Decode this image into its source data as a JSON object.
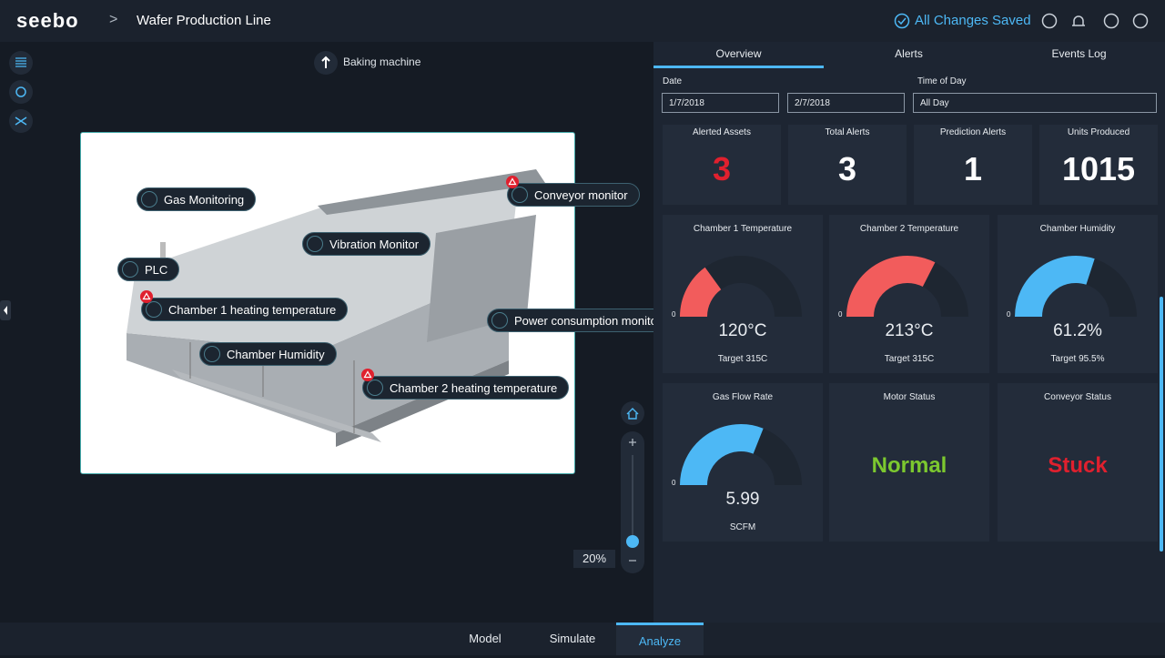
{
  "header": {
    "logo": "seebo",
    "breadcrumb": "Wafer Production Line",
    "status": "All Changes Saved"
  },
  "view": {
    "title": "Baking machine",
    "hotspots": [
      {
        "label": "Gas Monitoring",
        "alert": false
      },
      {
        "label": "Conveyor monitor",
        "alert": true
      },
      {
        "label": "Vibration Monitor",
        "alert": false
      },
      {
        "label": "PLC",
        "alert": false
      },
      {
        "label": "Chamber 1 heating temperature",
        "alert": true
      },
      {
        "label": "Power consumption monitor",
        "alert": false
      },
      {
        "label": "Chamber Humidity",
        "alert": false
      },
      {
        "label": "Chamber 2 heating temperature",
        "alert": true
      }
    ],
    "zoom": "20%"
  },
  "tabs": [
    {
      "label": "Overview",
      "active": true
    },
    {
      "label": "Alerts",
      "active": false
    },
    {
      "label": "Events Log",
      "active": false
    }
  ],
  "filters": {
    "date_label": "Date",
    "date_from": "1/7/2018",
    "date_to": "2/7/2018",
    "time_label": "Time of Day",
    "time_value": "All Day"
  },
  "kpis": [
    {
      "label": "Alerted Assets",
      "value": 3,
      "alert": true
    },
    {
      "label": "Total Alerts",
      "value": 3,
      "alert": false
    },
    {
      "label": "Prediction Alerts",
      "value": 1,
      "alert": false
    },
    {
      "label": "Units Produced",
      "value": 1015,
      "alert": false
    }
  ],
  "gauges": [
    {
      "title": "Chamber 1 Temperature",
      "min": 0,
      "value": "120°C",
      "caption": "Target 315C",
      "color": "#f25c5c"
    },
    {
      "title": "Chamber 2 Temperature",
      "min": 0,
      "value": "213°C",
      "caption": "Target 315C",
      "color": "#f25c5c"
    },
    {
      "title": "Chamber Humidity",
      "min": 0,
      "value": "61.2%",
      "caption": "Target 95.5%",
      "color": "#4db8f5"
    },
    {
      "title": "Gas Flow Rate",
      "min": 0,
      "value": "5.99",
      "caption": "SCFM",
      "color": "#4db8f5"
    }
  ],
  "statuses": [
    {
      "title": "Motor Status",
      "value": "Normal",
      "color": "#7cc82f"
    },
    {
      "title": "Conveyor Status",
      "value": "Stuck",
      "color": "#e0202e"
    }
  ],
  "bottom_tabs": [
    {
      "label": "Model",
      "active": false
    },
    {
      "label": "Simulate",
      "active": false
    },
    {
      "label": "Analyze",
      "active": true
    }
  ]
}
